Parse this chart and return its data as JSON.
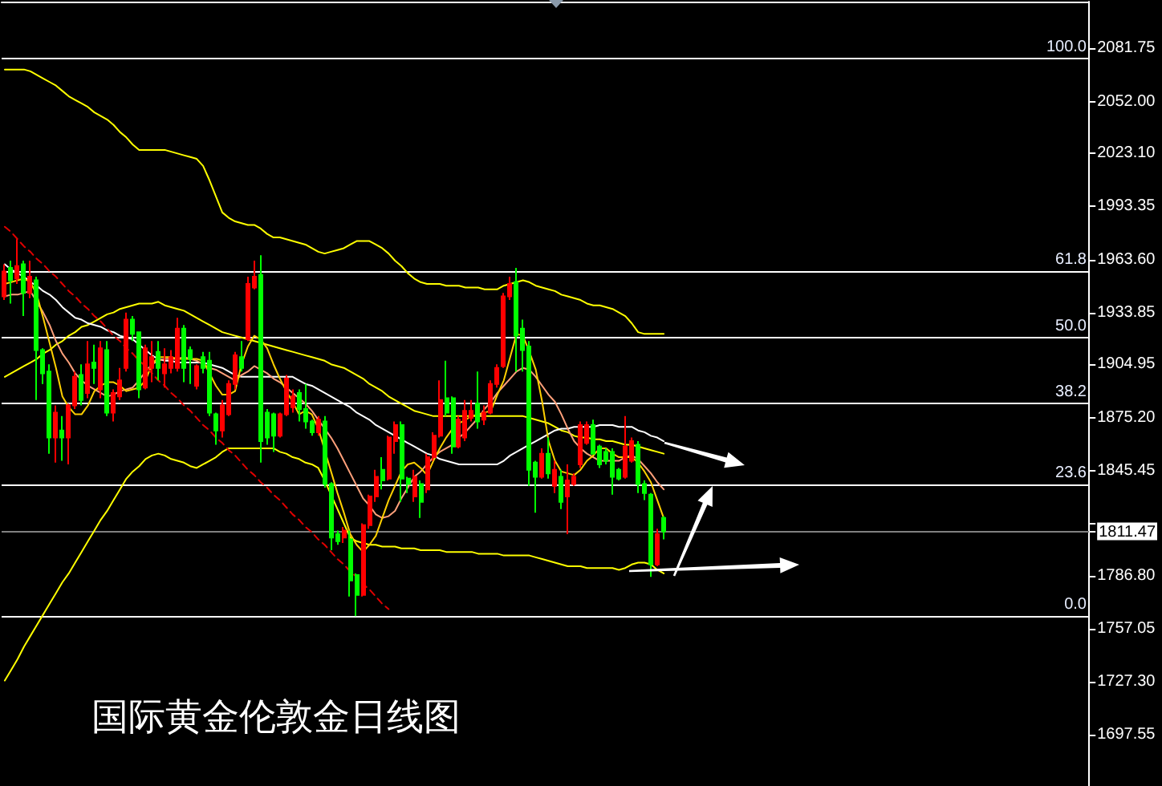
{
  "chart_data": {
    "type": "candlestick",
    "title": "国际黄金伦敦金日线图",
    "categories": [
      null,
      null,
      null,
      null,
      null,
      null,
      null,
      null,
      null,
      null,
      null,
      null,
      null,
      null,
      null,
      null,
      null,
      null,
      null,
      null,
      null,
      null,
      null,
      null,
      null,
      null,
      null,
      null,
      null,
      null,
      null,
      null,
      null,
      null,
      null,
      null,
      null,
      null,
      null,
      null,
      null,
      null,
      null,
      null,
      null,
      null,
      null,
      null,
      null,
      null,
      null,
      null,
      null,
      null,
      null,
      null,
      null,
      null,
      null,
      null,
      null,
      null,
      null,
      null,
      null,
      null,
      null,
      null,
      null,
      null,
      null,
      null,
      null,
      null,
      null,
      null,
      null,
      null,
      null,
      null,
      null,
      null,
      null,
      null,
      null,
      null,
      null,
      null,
      null,
      null,
      null,
      null,
      null,
      null,
      null,
      null,
      null,
      null,
      null,
      null,
      null,
      null,
      null,
      null,
      null,
      null,
      null,
      null,
      null,
      null,
      null,
      null,
      null,
      null,
      null,
      null,
      null,
      null,
      null,
      null,
      null,
      null,
      null,
      null,
      null,
      null,
      null,
      null,
      null,
      null,
      null,
      null,
      null,
      null,
      null,
      null,
      null,
      null,
      null,
      null,
      null,
      null,
      null,
      null,
      null,
      null,
      null,
      null,
      null,
      null,
      null,
      null,
      null,
      null,
      null,
      null,
      null,
      null,
      null,
      null,
      null,
      null,
      null,
      null,
      null,
      null,
      null,
      null,
      null,
      null
    ],
    "ohlc": [
      [
        1943,
        1961,
        1941,
        1957
      ],
      [
        1959,
        1963,
        1939,
        1952
      ],
      [
        1953,
        1975,
        1950,
        1960
      ],
      [
        1961,
        1963,
        1932,
        1945
      ],
      [
        1945,
        1963,
        1942,
        1954
      ],
      [
        1952,
        1954,
        1885,
        1913
      ],
      [
        1913,
        1914,
        1894,
        1900
      ],
      [
        1901,
        1905,
        1855,
        1864
      ],
      [
        1864,
        1882,
        1850,
        1878
      ],
      [
        1868,
        1876,
        1851,
        1864
      ],
      [
        1864,
        1883,
        1849,
        1882
      ],
      [
        1882,
        1901,
        1880,
        1898
      ],
      [
        1899,
        1905,
        1882,
        1885
      ],
      [
        1889,
        1918,
        1886,
        1905
      ],
      [
        1906,
        1916,
        1894,
        1903
      ],
      [
        1891,
        1918,
        1886,
        1914
      ],
      [
        1913,
        1918,
        1876,
        1878
      ],
      [
        1878,
        1891,
        1873,
        1889
      ],
      [
        1887,
        1903,
        1885,
        1896
      ],
      [
        1903,
        1934,
        1901,
        1930
      ],
      [
        1930,
        1932,
        1918,
        1922
      ],
      [
        1923,
        1923,
        1886,
        1891
      ],
      [
        1892,
        1916,
        1891,
        1914
      ],
      [
        1903,
        1918,
        1895,
        1909
      ],
      [
        1912,
        1918,
        1896,
        1903
      ],
      [
        1900,
        1914,
        1892,
        1905
      ],
      [
        1903,
        1913,
        1900,
        1909
      ],
      [
        1903,
        1931,
        1901,
        1925
      ],
      [
        1925,
        1927,
        1895,
        1903
      ],
      [
        1913,
        1915,
        1894,
        1908
      ],
      [
        1893,
        1905,
        1891,
        1904
      ],
      [
        1909,
        1912,
        1900,
        1903
      ],
      [
        1907,
        1912,
        1876,
        1878
      ],
      [
        1877,
        1878,
        1860,
        1868
      ],
      [
        1868,
        1885,
        1864,
        1882
      ],
      [
        1877,
        1896,
        1876,
        1894
      ],
      [
        1894,
        1912,
        1891,
        1910
      ],
      [
        1909,
        1918,
        1901,
        1903
      ],
      [
        1919,
        1954,
        1918,
        1950
      ],
      [
        1948,
        1963,
        1947,
        1954
      ],
      [
        1955,
        1966,
        1850,
        1862
      ],
      [
        1878,
        1880,
        1860,
        1864
      ],
      [
        1877,
        1878,
        1856,
        1865
      ],
      [
        1865,
        1878,
        1864,
        1877
      ],
      [
        1877,
        1899,
        1876,
        1897
      ],
      [
        1881,
        1891,
        1878,
        1887
      ],
      [
        1889,
        1891,
        1873,
        1880
      ],
      [
        1880,
        1894,
        1869,
        1873
      ],
      [
        1873,
        1874,
        1865,
        1867
      ],
      [
        1867,
        1876,
        1865,
        1874
      ],
      [
        1873,
        1876,
        1836,
        1838
      ],
      [
        1838,
        1839,
        1801,
        1808
      ],
      [
        1810,
        1812,
        1804,
        1806
      ],
      [
        1808,
        1814,
        1805,
        1812
      ],
      [
        1807,
        1812,
        1775,
        1784
      ],
      [
        1787,
        1788,
        1764,
        1776
      ],
      [
        1776,
        1816,
        1775,
        1815
      ],
      [
        1815,
        1832,
        1813,
        1831
      ],
      [
        1831,
        1846,
        1828,
        1842
      ],
      [
        1846,
        1853,
        1835,
        1840
      ],
      [
        1841,
        1865,
        1840,
        1864
      ],
      [
        1862,
        1873,
        1855,
        1871
      ],
      [
        1871,
        1873,
        1828,
        1841
      ],
      [
        1841,
        1842,
        1833,
        1838
      ],
      [
        1831,
        1846,
        1828,
        1842
      ],
      [
        1838,
        1840,
        1819,
        1828
      ],
      [
        1835,
        1855,
        1833,
        1853
      ],
      [
        1853,
        1867,
        1851,
        1865
      ],
      [
        1865,
        1896,
        1864,
        1885
      ],
      [
        1886,
        1907,
        1876,
        1878
      ],
      [
        1886,
        1887,
        1855,
        1859
      ],
      [
        1859,
        1876,
        1858,
        1874
      ],
      [
        1864,
        1885,
        1862,
        1879
      ],
      [
        1875,
        1885,
        1873,
        1879
      ],
      [
        1883,
        1901,
        1869,
        1873
      ],
      [
        1874,
        1882,
        1871,
        1878
      ],
      [
        1878,
        1896,
        1877,
        1894
      ],
      [
        1894,
        1905,
        1892,
        1903
      ],
      [
        1904,
        1945,
        1903,
        1943
      ],
      [
        1943,
        1954,
        1941,
        1950
      ],
      [
        1951,
        1959,
        1901,
        1921
      ],
      [
        1925,
        1930,
        1901,
        1913
      ],
      [
        1915,
        1918,
        1837,
        1846
      ],
      [
        1850,
        1851,
        1822,
        1842
      ],
      [
        1842,
        1858,
        1841,
        1855
      ],
      [
        1855,
        1864,
        1841,
        1844
      ],
      [
        1837,
        1851,
        1833,
        1846
      ],
      [
        1842,
        1846,
        1824,
        1828
      ],
      [
        1831,
        1849,
        1810,
        1840
      ],
      [
        1838,
        1844,
        1837,
        1842
      ],
      [
        1849,
        1873,
        1847,
        1871
      ],
      [
        1861,
        1873,
        1860,
        1871
      ],
      [
        1871,
        1874,
        1855,
        1855
      ],
      [
        1859,
        1860,
        1847,
        1849
      ],
      [
        1856,
        1858,
        1849,
        1851
      ],
      [
        1856,
        1858,
        1832,
        1842
      ],
      [
        1846,
        1847,
        1840,
        1841
      ],
      [
        1842,
        1876,
        1841,
        1859
      ],
      [
        1851,
        1864,
        1850,
        1862
      ],
      [
        1860,
        1862,
        1833,
        1838
      ],
      [
        1838,
        1840,
        1829,
        1833
      ],
      [
        1832,
        1833,
        1786,
        1793
      ],
      [
        1793,
        1813,
        1792,
        1810
      ],
      [
        1819,
        1820,
        1807,
        1811.47
      ],
      null,
      null,
      null,
      null,
      null,
      null,
      null,
      null,
      null,
      null,
      null,
      null,
      null,
      null,
      null,
      null,
      null,
      null,
      null,
      null,
      null,
      null,
      null,
      null,
      null,
      null,
      null,
      null,
      null,
      null,
      null,
      null,
      null,
      null,
      null,
      null,
      null,
      null,
      null,
      null,
      null,
      null,
      null,
      null,
      null,
      null,
      null,
      null,
      null,
      null,
      null,
      null,
      null,
      null,
      null,
      null,
      null,
      null,
      null,
      null,
      null,
      null,
      null,
      null,
      null,
      null
    ],
    "colors": [
      "#ff0000",
      "#00ff00",
      "#ff0000",
      "#00ff00",
      "#ff0000",
      "#00ff00",
      "#00ff00",
      "#00ff00",
      "#ff0000",
      "#00ff00",
      "#ff0000",
      "#ff0000",
      "#00ff00",
      "#ff0000",
      "#00ff00",
      "#ff0000",
      "#00ff00",
      "#ff0000",
      "#ff0000",
      "#ff0000",
      "#00ff00",
      "#00ff00",
      "#ff0000",
      "#ff0000",
      "#00ff00",
      "#ff0000",
      "#ff0000",
      "#ff0000",
      "#00ff00",
      "#00ff00",
      "#ff0000",
      "#00ff00",
      "#00ff00",
      "#00ff00",
      "#ff0000",
      "#ff0000",
      "#ff0000",
      "#00ff00",
      "#ff0000",
      "#ff0000",
      "#00ff00",
      "#00ff00",
      "#00ff00",
      "#ff0000",
      "#ff0000",
      "#ff0000",
      "#00ff00",
      "#00ff00",
      "#00ff00",
      "#ff0000",
      "#00ff00",
      "#00ff00",
      "#00ff00",
      "#ff0000",
      "#00ff00",
      "#00ff00",
      "#ff0000",
      "#ff0000",
      "#ff0000",
      "#00ff00",
      "#ff0000",
      "#ff0000",
      "#00ff00",
      "#00ff00",
      "#ff0000",
      "#00ff00",
      "#ff0000",
      "#ff0000",
      "#ff0000",
      "#00ff00",
      "#00ff00",
      "#ff0000",
      "#ff0000",
      "#ff0000",
      "#00ff00",
      "#ff0000",
      "#ff0000",
      "#ff0000",
      "#ff0000",
      "#ff0000",
      "#00ff00",
      "#00ff00",
      "#00ff00",
      "#00ff00",
      "#ff0000",
      "#00ff00",
      "#ff0000",
      "#00ff00",
      "#ff0000",
      "#ff0000",
      "#ff0000",
      "#ff0000",
      "#00ff00",
      "#00ff00",
      "#00ff00",
      "#00ff00",
      "#00ff00",
      "#ff0000",
      "#ff0000",
      "#00ff00",
      "#00ff00",
      "#00ff00",
      "#ff0000",
      "#00ff00",
      null,
      null,
      null,
      null,
      null,
      null,
      null,
      null,
      null,
      null,
      null,
      null,
      null,
      null,
      null,
      null,
      null,
      null,
      null,
      null,
      null,
      null,
      null,
      null,
      null,
      null,
      null,
      null,
      null,
      null,
      null,
      null,
      null,
      null,
      null,
      null,
      null,
      null,
      null,
      null,
      null,
      null,
      null,
      null,
      null,
      null,
      null,
      null,
      null,
      null,
      null,
      null,
      null,
      null,
      null,
      null,
      null,
      null,
      null,
      null,
      null,
      null,
      null,
      null,
      null,
      null
    ],
    "series": [
      {
        "type": "line",
        "color": "#ffff00",
        "values": [
          2070,
          2070,
          2070,
          2070,
          2069,
          2067,
          2065,
          2063,
          2061,
          2058,
          2055,
          2053,
          2051,
          2049,
          2046,
          2044,
          2042,
          2039,
          2035,
          2032,
          2028,
          2025,
          2025,
          2025,
          2025,
          2025,
          2024,
          2023,
          2022,
          2021,
          2020,
          2016,
          2008,
          1999,
          1990,
          1987,
          1985,
          1984,
          1983,
          1983,
          1981,
          1978,
          1976,
          1976,
          1975,
          1974,
          1973,
          1972,
          1970,
          1968,
          1967,
          1968,
          1969,
          1970,
          1972,
          1974,
          1974,
          1974,
          1972,
          1970,
          1967,
          1963,
          1960,
          1956,
          1953,
          1951,
          1950,
          1950,
          1950,
          1949,
          1949,
          1949,
          1948,
          1948,
          1948,
          1947,
          1947,
          1947,
          1949,
          1950,
          1951,
          1952,
          1951,
          1949,
          1948,
          1947,
          1946,
          1944,
          1943,
          1942,
          1941,
          1939,
          1938,
          1938,
          1937,
          1936,
          1934,
          1932,
          1928,
          1923,
          1922,
          1922,
          1922,
          1922,
          null,
          null,
          null,
          null,
          null,
          null,
          null,
          null,
          null,
          null,
          null,
          null,
          null,
          null,
          null,
          null,
          null,
          null,
          null,
          null,
          null,
          null,
          null,
          null,
          null,
          null,
          null,
          null,
          null,
          null,
          null,
          null,
          null,
          null,
          null,
          null,
          null,
          null,
          null,
          null,
          null,
          null,
          null,
          null,
          null,
          null,
          null,
          null,
          null,
          null,
          null,
          null,
          null,
          null,
          null,
          null,
          null,
          null,
          null,
          null,
          null,
          null,
          null,
          null,
          null,
          null
        ]
      },
      {
        "type": "line",
        "color": "#ffff00",
        "values": [
          1898,
          1900,
          1902,
          1904,
          1906,
          1908,
          1911,
          1913,
          1916,
          1918,
          1921,
          1923,
          1926,
          1927,
          1929,
          1931,
          1933,
          1934,
          1936,
          1937,
          1938,
          1939,
          1939,
          1939,
          1940,
          1938,
          1937,
          1936,
          1935,
          1933,
          1931,
          1929,
          1927,
          1925,
          1923,
          1922,
          1921,
          1920,
          1919,
          1918,
          1917,
          1916,
          1915,
          1914,
          1913,
          1912,
          1911,
          1910,
          1909,
          1908,
          1907,
          1905,
          1904,
          1903,
          1901,
          1899,
          1897,
          1894,
          1892,
          1890,
          1887,
          1885,
          1883,
          1881,
          1879,
          1878,
          1877,
          1876,
          1876,
          1876,
          1876,
          1876,
          1876,
          1876,
          1876,
          1876,
          1876,
          1876,
          1876,
          1876,
          1876,
          1876,
          1875,
          1874,
          1873,
          1872,
          1870,
          1868,
          1867,
          1865,
          1864,
          1864,
          1863,
          1863,
          1862,
          1862,
          1861,
          1860,
          1860,
          1859,
          1858,
          1857,
          1856,
          1855,
          null,
          null,
          null,
          null,
          null,
          null,
          null,
          null,
          null,
          null,
          null,
          null,
          null,
          null,
          null,
          null,
          null,
          null,
          null,
          null,
          null,
          null,
          null,
          null,
          null,
          null,
          null,
          null,
          null,
          null,
          null,
          null,
          null,
          null,
          null,
          null,
          null,
          null,
          null,
          null,
          null,
          null,
          null,
          null,
          null,
          null,
          null,
          null,
          null,
          null,
          null,
          null,
          null,
          null,
          null,
          null,
          null,
          null,
          null,
          null,
          null,
          null,
          null,
          null,
          null,
          null
        ]
      },
      {
        "type": "line",
        "color": "#ffff00",
        "values": [
          1728,
          1734,
          1740,
          1747,
          1753,
          1759,
          1765,
          1771,
          1777,
          1783,
          1788,
          1794,
          1800,
          1806,
          1812,
          1818,
          1823,
          1829,
          1835,
          1841,
          1845,
          1848,
          1852,
          1854,
          1855,
          1854,
          1852,
          1851,
          1850,
          1848,
          1847,
          1849,
          1851,
          1853,
          1856,
          1858,
          1858,
          1858,
          1858,
          1858,
          1858,
          1858,
          1858,
          1856,
          1855,
          1853,
          1852,
          1850,
          1849,
          1847,
          1840,
          1832,
          1824,
          1816,
          1808,
          1806,
          1805,
          1804,
          1804,
          1803,
          1803,
          1803,
          1802,
          1802,
          1802,
          1801,
          1801,
          1801,
          1801,
          1800,
          1800,
          1800,
          1800,
          1800,
          1799,
          1799,
          1799,
          1799,
          1798,
          1798,
          1798,
          1798,
          1798,
          1797,
          1796,
          1795,
          1794,
          1793,
          1792,
          1792,
          1792,
          1791,
          1791,
          1791,
          1791,
          1791,
          1790,
          1791,
          1793,
          1794,
          1794,
          1793,
          1790,
          1788,
          null,
          null,
          null,
          null,
          null,
          null,
          null,
          null,
          null,
          null,
          null,
          null,
          null,
          null,
          null,
          null,
          null,
          null,
          null,
          null,
          null,
          null,
          null,
          null,
          null,
          null,
          null,
          null,
          null,
          null,
          null,
          null,
          null,
          null,
          null,
          null,
          null,
          null,
          null,
          null,
          null,
          null,
          null,
          null,
          null,
          null,
          null,
          null,
          null,
          null,
          null,
          null,
          null,
          null,
          null,
          null,
          null,
          null,
          null,
          null,
          null,
          null,
          null,
          null,
          null,
          null
        ]
      },
      {
        "type": "line",
        "color": "#ffffff",
        "values": [
          1961,
          1958,
          1956,
          1954,
          1951,
          1949,
          1946,
          1944,
          1941,
          1937,
          1934,
          1931,
          1930,
          1928,
          1927,
          1926,
          1924,
          1923,
          1921,
          1920,
          1919,
          1916,
          1913,
          1910,
          1908,
          1907,
          1907,
          1906,
          1906,
          1906,
          1906,
          1906,
          1905,
          1904,
          1903,
          1901,
          1899,
          1898,
          1898,
          1898,
          1898,
          1898,
          1898,
          1898,
          1898,
          1898,
          1896,
          1894,
          1893,
          1891,
          1889,
          1887,
          1885,
          1883,
          1881,
          1878,
          1876,
          1874,
          1871,
          1869,
          1867,
          1865,
          1863,
          1861,
          1859,
          1857,
          1855,
          1854,
          1852,
          1851,
          1850,
          1849,
          1849,
          1849,
          1849,
          1849,
          1849,
          1849,
          1851,
          1854,
          1856,
          1858,
          1860,
          1862,
          1864,
          1866,
          1868,
          1869,
          1869,
          1870,
          1870,
          1870,
          1870,
          1871,
          1871,
          1871,
          1870,
          1870,
          1870,
          1868,
          1867,
          1865,
          1864,
          1862,
          null,
          null,
          null,
          null,
          null,
          null,
          null,
          null,
          null,
          null,
          null,
          null,
          null,
          null,
          null,
          null,
          null,
          null,
          null,
          null,
          null,
          null,
          null,
          null,
          null,
          null,
          null,
          null,
          null,
          null,
          null,
          null,
          null,
          null,
          null,
          null,
          null,
          null,
          null,
          null,
          null,
          null,
          null,
          null,
          null,
          null,
          null,
          null,
          null,
          null,
          null,
          null,
          null,
          null,
          null,
          null,
          null,
          null,
          null,
          null,
          null,
          null,
          null,
          null,
          null,
          null
        ]
      },
      {
        "type": "line",
        "color": "#ffa07a",
        "values": [
          1943,
          1944,
          1944,
          1945,
          1946,
          1940,
          1934,
          1927,
          1918,
          1911,
          1906,
          1900,
          1896,
          1893,
          1891,
          1889,
          1887,
          1888,
          1890,
          1891,
          1892,
          1896,
          1901,
          1905,
          1907,
          1908,
          1908,
          1908,
          1909,
          1908,
          1907,
          1905,
          1903,
          1902,
          1900,
          1898,
          1896,
          1899,
          1901,
          1904,
          1902,
          1900,
          1897,
          1895,
          1892,
          1889,
          1886,
          1883,
          1879,
          1874,
          1869,
          1864,
          1858,
          1851,
          1844,
          1837,
          1830,
          1826,
          1821,
          1819,
          1820,
          1823,
          1830,
          1836,
          1842,
          1845,
          1849,
          1853,
          1856,
          1858,
          1860,
          1864,
          1867,
          1871,
          1875,
          1880,
          1884,
          1889,
          1893,
          1897,
          1901,
          1903,
          1902,
          1898,
          1893,
          1888,
          1884,
          1877,
          1869,
          1862,
          1858,
          1855,
          1853,
          1851,
          1851,
          1851,
          1851,
          1853,
          1854,
          1852,
          1848,
          1844,
          1839,
          1835,
          null,
          null,
          null,
          null,
          null,
          null,
          null,
          null,
          null,
          null,
          null,
          null,
          null,
          null,
          null,
          null,
          null,
          null,
          null,
          null,
          null,
          null,
          null,
          null,
          null,
          null,
          null,
          null,
          null,
          null,
          null,
          null,
          null,
          null,
          null,
          null,
          null,
          null,
          null,
          null,
          null,
          null,
          null,
          null,
          null,
          null,
          null,
          null,
          null,
          null,
          null,
          null,
          null,
          null,
          null,
          null,
          null,
          null,
          null,
          null,
          null,
          null,
          null,
          null,
          null,
          null
        ]
      },
      {
        "type": "line",
        "color": "#ffd000",
        "values": [
          1950,
          1951,
          1952,
          1953,
          1951,
          1944,
          1931,
          1917,
          1903,
          1887,
          1881,
          1877,
          1877,
          1882,
          1890,
          1893,
          1895,
          1895,
          1893,
          1890,
          1891,
          1892,
          1896,
          1905,
          1909,
          1909,
          1909,
          1908,
          1908,
          1908,
          1908,
          1907,
          1900,
          1893,
          1888,
          1888,
          1890,
          1905,
          1915,
          1921,
          1919,
          1914,
          1905,
          1897,
          1890,
          1884,
          1877,
          1879,
          1877,
          1869,
          1857,
          1845,
          1833,
          1822,
          1810,
          1804,
          1800,
          1804,
          1809,
          1819,
          1829,
          1837,
          1845,
          1849,
          1850,
          1847,
          1843,
          1851,
          1858,
          1864,
          1869,
          1872,
          1874,
          1876,
          1877,
          1878,
          1879,
          1888,
          1896,
          1909,
          1922,
          1921,
          1912,
          1902,
          1884,
          1862,
          1851,
          1845,
          1844,
          1843,
          1846,
          1851,
          1854,
          1858,
          1858,
          1855,
          1853,
          1853,
          1853,
          1850,
          1845,
          1839,
          1829,
          1819,
          null,
          null,
          null,
          null,
          null,
          null,
          null,
          null,
          null,
          null,
          null,
          null,
          null,
          null,
          null,
          null,
          null,
          null,
          null,
          null,
          null,
          null,
          null,
          null,
          null,
          null,
          null,
          null,
          null,
          null,
          null,
          null,
          null,
          null,
          null,
          null,
          null,
          null,
          null,
          null,
          null,
          null,
          null,
          null,
          null,
          null,
          null,
          null,
          null,
          null,
          null,
          null,
          null,
          null,
          null,
          null,
          null,
          null,
          null,
          null,
          null,
          null,
          null,
          null,
          null,
          null
        ]
      },
      {
        "type": "line",
        "color": "#e00000",
        "line_style": "dashed",
        "values": [
          1982,
          1979,
          1975,
          1971,
          1968,
          1964,
          1961,
          1957,
          1954,
          1950,
          1946,
          1943,
          1939,
          1936,
          1932,
          1929,
          1925,
          1921,
          1918,
          1914,
          1911,
          1907,
          1904,
          1900,
          1896,
          1893,
          1889,
          1886,
          1882,
          1879,
          1875,
          1871,
          1868,
          1864,
          1861,
          1857,
          1854,
          1850,
          1846,
          1843,
          1839,
          1836,
          1832,
          1829,
          1825,
          1821,
          1818,
          1814,
          1811,
          1807,
          1804,
          1800,
          1796,
          1793,
          1789,
          1786,
          1782,
          1779,
          1775,
          1771,
          1768,
          null,
          null,
          null,
          null,
          null,
          null,
          null,
          null,
          null,
          null,
          null,
          null,
          null,
          null,
          null,
          null,
          null,
          null,
          null,
          null,
          null,
          null,
          null,
          null,
          null,
          null,
          null,
          null,
          null,
          null,
          null,
          null,
          null,
          null,
          null,
          null,
          null,
          null,
          null,
          null,
          null,
          null,
          null,
          null,
          null,
          null,
          null,
          null,
          null,
          null,
          null,
          null,
          null,
          null,
          null,
          null,
          null,
          null,
          null,
          null,
          null,
          null,
          null,
          null,
          null,
          null,
          null,
          null,
          null,
          null,
          null,
          null,
          null,
          null,
          null,
          null,
          null,
          null,
          null,
          null,
          null,
          null,
          null,
          null,
          null,
          null,
          null,
          null,
          null,
          null,
          null,
          null,
          null,
          null,
          null,
          null,
          null,
          null,
          null,
          null,
          null,
          null,
          null,
          null,
          null,
          null,
          null,
          null,
          null
        ]
      }
    ],
    "ylim": [
      1669,
      2108
    ],
    "yticks": [
      2081.75,
      {
        "value": 2052,
        "label": "2052.00"
      },
      {
        "value": 2023.1,
        "label": "2023.10"
      },
      1993.35,
      {
        "value": 1963.6,
        "label": "1963.60"
      },
      1933.85,
      1904.95,
      {
        "value": 1875.2,
        "label": "1875.20"
      },
      1845.45,
      {
        "value": 1815.7,
        "label": null
      },
      1811.47,
      {
        "value": 1786.8,
        "label": "1786.80"
      },
      1757.05,
      {
        "value": 1727.3,
        "label": "1727.30"
      },
      1697.55
    ],
    "tick_labels": "y",
    "grid": false,
    "marker": "none",
    "ref_lines": [
      {
        "axis": "y",
        "value": 2076,
        "color": "#ffffff"
      },
      {
        "axis": "y",
        "value": 1957,
        "color": "#ffffff"
      },
      {
        "axis": "y",
        "value": 1920,
        "color": "#ffffff"
      },
      {
        "axis": "y",
        "value": 1883,
        "color": "#ffffff"
      },
      {
        "axis": "y",
        "value": 1838,
        "color": "#ffffff"
      },
      {
        "axis": "y",
        "value": 1764,
        "color": "#ffffff"
      },
      {
        "axis": "y",
        "value": 1811.47,
        "color": "#808080"
      }
    ],
    "annotations": [
      {
        "text": "100.0",
        "y": 2076
      },
      {
        "text": "61.8",
        "y": 1957
      },
      {
        "text": "50.0",
        "y": 1920
      },
      {
        "text": "38.2",
        "y": 1883
      },
      {
        "text": "23.6",
        "y": 1838
      },
      {
        "text": "0.0",
        "y": 1764
      }
    ]
  }
}
